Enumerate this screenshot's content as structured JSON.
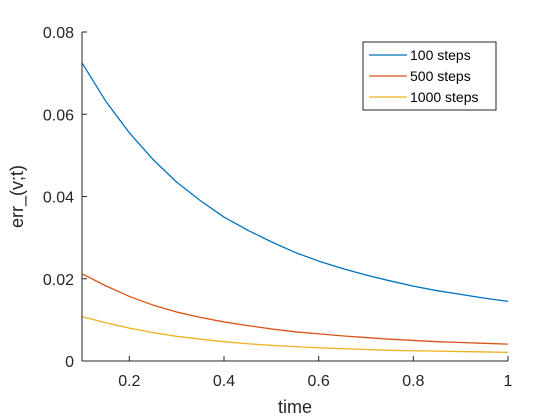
{
  "chart_data": {
    "type": "line",
    "title": "",
    "xlabel": "time",
    "ylabel": "err_(v;t)",
    "xlim": [
      0.1,
      1
    ],
    "ylim": [
      0,
      0.08
    ],
    "xticks": [
      0.2,
      0.4,
      0.6,
      0.8,
      1
    ],
    "xtick_labels": [
      "0.2",
      "0.4",
      "0.6",
      "0.8",
      "1"
    ],
    "yticks": [
      0,
      0.02,
      0.04,
      0.06,
      0.08
    ],
    "ytick_labels": [
      "0",
      "0.02",
      "0.04",
      "0.06",
      "0.08"
    ],
    "grid": false,
    "legend_position": "top-right",
    "x": [
      0.1,
      0.15,
      0.2,
      0.25,
      0.3,
      0.35,
      0.4,
      0.45,
      0.5,
      0.55,
      0.6,
      0.65,
      0.7,
      0.75,
      0.8,
      0.85,
      0.9,
      0.95,
      1.0
    ],
    "series": [
      {
        "name": "100 steps",
        "color": "#0072BD",
        "values": [
          0.0725,
          0.0632,
          0.0555,
          0.049,
          0.0435,
          0.039,
          0.035,
          0.0318,
          0.029,
          0.0264,
          0.0243,
          0.0225,
          0.0209,
          0.0195,
          0.0182,
          0.0171,
          0.0162,
          0.0153,
          0.0145
        ]
      },
      {
        "name": "500 steps",
        "color": "#D95319",
        "values": [
          0.0212,
          0.0183,
          0.0157,
          0.0136,
          0.0119,
          0.0106,
          0.0095,
          0.0086,
          0.0078,
          0.0071,
          0.0066,
          0.0061,
          0.0057,
          0.0053,
          0.005,
          0.0047,
          0.0045,
          0.0043,
          0.0041
        ]
      },
      {
        "name": "1000 steps",
        "color": "#EDB120",
        "values": [
          0.0108,
          0.0093,
          0.008,
          0.0069,
          0.006,
          0.0053,
          0.0047,
          0.0042,
          0.0038,
          0.0035,
          0.0032,
          0.003,
          0.0028,
          0.0026,
          0.0025,
          0.0024,
          0.0023,
          0.0022,
          0.0021
        ]
      }
    ]
  }
}
